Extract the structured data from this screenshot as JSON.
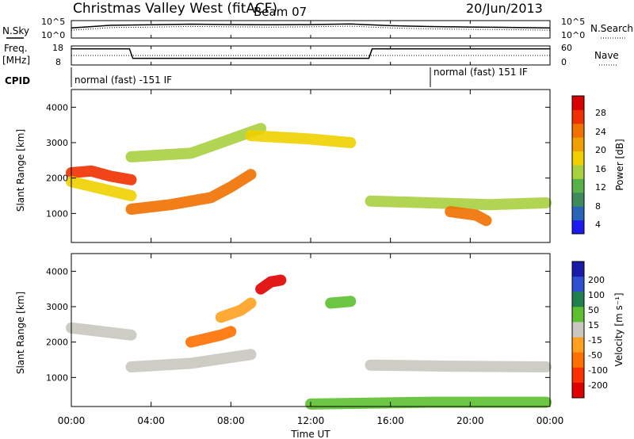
{
  "header": {
    "title": "Christmas Valley West (fitACF)",
    "beam": "Beam 07",
    "date": "20/Jun/2013"
  },
  "noise_panel": {
    "left_label": "N.Sky",
    "right_label": "N.Search",
    "left_ticks": [
      "10^5",
      "10^0"
    ],
    "right_ticks": [
      "10^5",
      "10^0"
    ]
  },
  "freq_panel": {
    "left_label_1": "Freq.",
    "left_label_2": "[MHz]",
    "right_label": "Nave",
    "left_ticks": [
      "18",
      "8"
    ],
    "right_ticks": [
      "60",
      "0"
    ]
  },
  "cpid_panel": {
    "label": "CPID",
    "modes": [
      "normal (fast) -151 IF",
      "normal (fast) 151 IF"
    ]
  },
  "power_panel": {
    "ylabel": "Slant Range [km]",
    "yticks": [
      "4000",
      "3000",
      "2000",
      "1000"
    ],
    "colorbar_label": "Power [dB]",
    "colorbar_ticks": [
      "28",
      "24",
      "20",
      "16",
      "12",
      "8",
      "4"
    ],
    "colors": [
      "#1b1bf0",
      "#2a64b8",
      "#3f8a5c",
      "#58b048",
      "#a8d040",
      "#f0d000",
      "#f0a000",
      "#f07000",
      "#f03000",
      "#d80000"
    ]
  },
  "velocity_panel": {
    "ylabel": "Slant Range [km]",
    "yticks": [
      "4000",
      "3000",
      "2000",
      "1000"
    ],
    "colorbar_label": "Velocity [m s⁻¹]",
    "colorbar_ticks": [
      "200",
      "100",
      "50",
      "15",
      "-15",
      "-50",
      "-100",
      "-200"
    ],
    "colors": [
      "#1a1aa8",
      "#2e4fd0",
      "#1f7f4f",
      "#5cc030",
      "#c8c8c0",
      "#ffa020",
      "#ff7000",
      "#ff3000",
      "#e00000"
    ]
  },
  "x_axis": {
    "label": "Time UT",
    "ticks": [
      "00:00",
      "04:00",
      "08:00",
      "12:00",
      "16:00",
      "20:00",
      "00:00"
    ]
  },
  "chart_data": [
    {
      "type": "line",
      "title": "Christmas Valley West (fitACF)",
      "xlabel": "",
      "ylabel": "N.Sky",
      "x": [
        "00:00",
        "02:00",
        "04:00",
        "06:00",
        "08:00",
        "10:00",
        "12:00",
        "14:00",
        "16:00",
        "18:00",
        "20:00",
        "22:00",
        "24:00"
      ],
      "series": [
        {
          "name": "N.Sky",
          "values": [
            1000,
            8000,
            12000,
            20000,
            15000,
            12000,
            15000,
            25000,
            6000,
            3000,
            2000,
            1500,
            1000
          ]
        }
      ],
      "ylim": [
        1,
        100000
      ],
      "yscale": "log"
    },
    {
      "type": "line",
      "xlabel": "",
      "ylabel": "Freq. [MHz]",
      "x": [
        "00:00",
        "02:55",
        "03:05",
        "14:55",
        "15:05",
        "24:00"
      ],
      "series": [
        {
          "name": "Freq.",
          "values": [
            16.5,
            16.5,
            11.5,
            11.5,
            16.5,
            16.5
          ]
        }
      ],
      "ylim": [
        8,
        18
      ]
    },
    {
      "type": "heatmap",
      "title": "Beam 07",
      "xlabel": "Time UT",
      "ylabel": "Slant Range [km]",
      "xlim": [
        "00:00",
        "24:00"
      ],
      "ylim": [
        180,
        4500
      ],
      "colorbar": {
        "label": "Power [dB]",
        "range": [
          0,
          32
        ]
      },
      "bands": [
        {
          "t": [
            0.0,
            1.0,
            2.0,
            3.0
          ],
          "range": [
            2150,
            2200,
            2050,
            1950
          ],
          "value": 26
        },
        {
          "t": [
            0.0,
            1.5,
            3.0
          ],
          "range": [
            1900,
            1700,
            1500
          ],
          "value": 18
        },
        {
          "t": [
            3.0,
            5.0,
            7.0,
            8.0,
            9.0
          ],
          "range": [
            1120,
            1250,
            1450,
            1750,
            2100
          ],
          "value": 24
        },
        {
          "t": [
            3.0,
            6.0,
            8.0,
            9.5
          ],
          "range": [
            2600,
            2700,
            3100,
            3400
          ],
          "value": 14
        },
        {
          "t": [
            9.0,
            12.0,
            14.0
          ],
          "range": [
            3200,
            3100,
            3000
          ],
          "value": 16
        },
        {
          "t": [
            15.0,
            18.0,
            21.0,
            23.8
          ],
          "range": [
            1350,
            1300,
            1250,
            1300
          ],
          "value": 13
        },
        {
          "t": [
            19.0,
            20.3,
            20.8
          ],
          "range": [
            1050,
            950,
            800
          ],
          "value": 24
        }
      ]
    },
    {
      "type": "heatmap",
      "xlabel": "Time UT",
      "ylabel": "Slant Range [km]",
      "xlim": [
        "00:00",
        "24:00"
      ],
      "ylim": [
        180,
        4500
      ],
      "colorbar": {
        "label": "Velocity [m s⁻¹]",
        "range": [
          -250,
          250
        ]
      },
      "bands": [
        {
          "t": [
            0.0,
            1.5,
            3.0
          ],
          "range": [
            2400,
            2300,
            2200
          ],
          "value": 0
        },
        {
          "t": [
            3.0,
            6.0,
            9.0
          ],
          "range": [
            1300,
            1400,
            1650
          ],
          "value": 0
        },
        {
          "t": [
            6.0,
            7.5,
            8.0
          ],
          "range": [
            2000,
            2200,
            2300
          ],
          "value": -80
        },
        {
          "t": [
            7.5,
            8.5,
            9.0
          ],
          "range": [
            2700,
            2900,
            3100
          ],
          "value": -60
        },
        {
          "t": [
            9.5,
            10.0,
            10.5
          ],
          "range": [
            3500,
            3700,
            3750
          ],
          "value": -200
        },
        {
          "t": [
            13.0,
            14.0
          ],
          "range": [
            3100,
            3150
          ],
          "value": 50
        },
        {
          "t": [
            15.0,
            19.0,
            23.8
          ],
          "range": [
            1350,
            1320,
            1300
          ],
          "value": 0
        },
        {
          "t": [
            12.0,
            18.0,
            23.8
          ],
          "range": [
            250,
            300,
            300
          ],
          "value": 50
        }
      ]
    }
  ]
}
